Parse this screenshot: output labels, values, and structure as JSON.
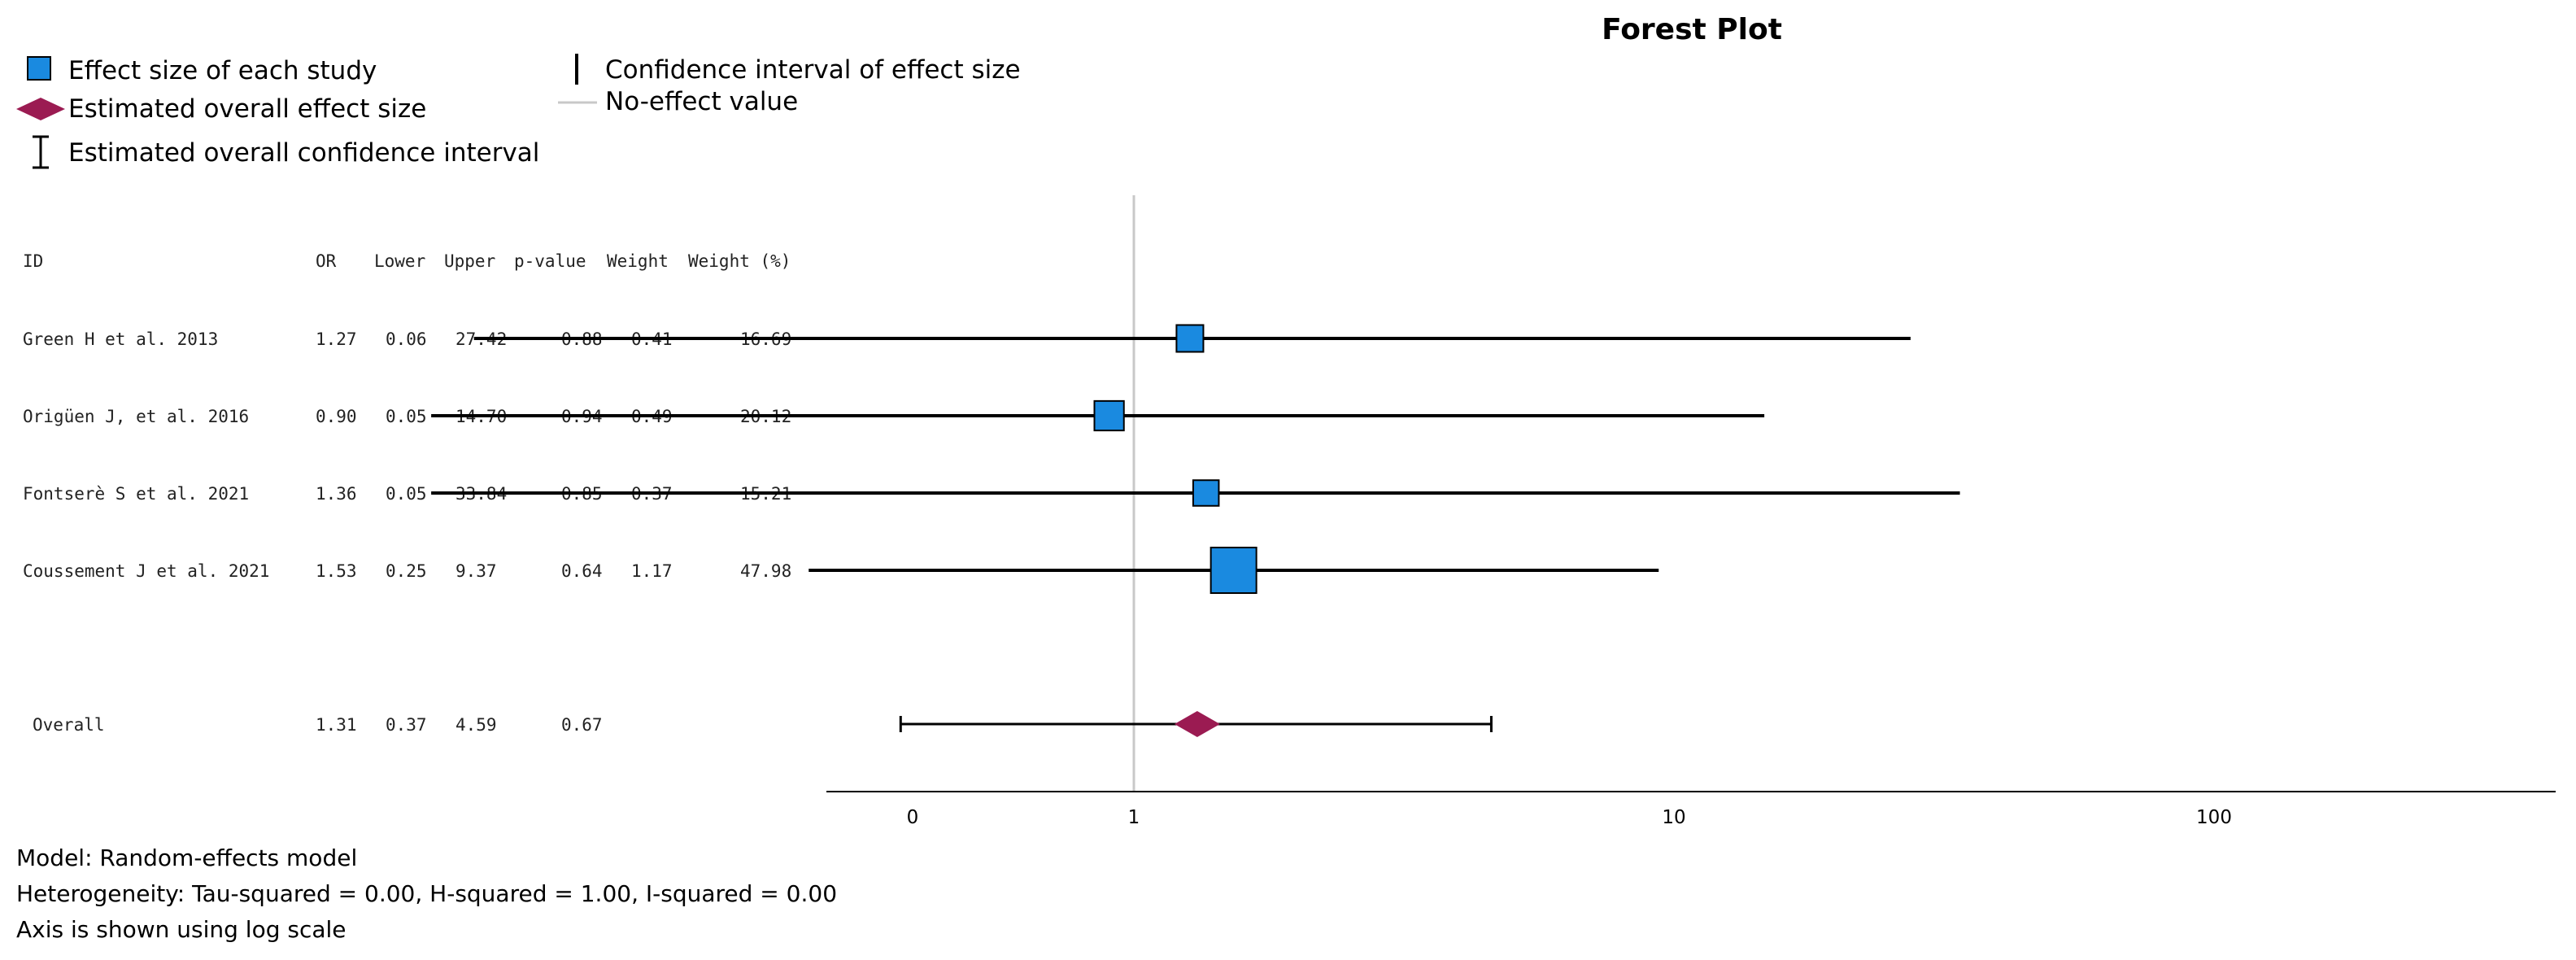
{
  "chart_data": {
    "type": "forest",
    "title": "Forest Plot",
    "legend": {
      "study_effect": "Effect size of each study",
      "overall_effect": "Estimated overall effect size",
      "overall_ci": "Estimated overall confidence interval",
      "study_ci": "Confidence interval of effect size",
      "no_effect": "No-effect value"
    },
    "columns": [
      "ID",
      "OR",
      "Lower",
      "Upper",
      "p-value",
      "Weight",
      "Weight (%)"
    ],
    "studies": [
      {
        "id": "Green H et al. 2013",
        "or": 1.27,
        "lower": 0.06,
        "upper": 27.42,
        "p": 0.88,
        "weight": 0.41,
        "weight_pct": 16.69
      },
      {
        "id": "Origüen J, et al. 2016",
        "or": 0.9,
        "lower": 0.05,
        "upper": 14.7,
        "p": 0.94,
        "weight": 0.49,
        "weight_pct": 20.12
      },
      {
        "id": "Fontserè S et al. 2021",
        "or": 1.36,
        "lower": 0.05,
        "upper": 33.84,
        "p": 0.85,
        "weight": 0.37,
        "weight_pct": 15.21
      },
      {
        "id": "Coussement J et al. 2021",
        "or": 1.53,
        "lower": 0.25,
        "upper": 9.37,
        "p": 0.64,
        "weight": 1.17,
        "weight_pct": 47.98
      }
    ],
    "overall": {
      "id": "Overall",
      "or": 1.31,
      "lower": 0.37,
      "upper": 4.59,
      "p": 0.67
    },
    "x_axis": {
      "scale": "log",
      "ticks": [
        0,
        1,
        10,
        100
      ],
      "tick_labels": [
        "0",
        "1",
        "10",
        "100"
      ]
    },
    "no_effect_value": 1,
    "colors": {
      "study": "#1a8ae0",
      "overall": "#9b1b52",
      "line": "#000000",
      "ref_line": "#c8c8c8"
    }
  },
  "footer": {
    "model": "Model: Random-effects model",
    "heterogeneity": "Heterogeneity: Tau-squared = 0.00, H-squared = 1.00, I-squared = 0.00",
    "axis_note": "Axis is shown using log scale"
  }
}
